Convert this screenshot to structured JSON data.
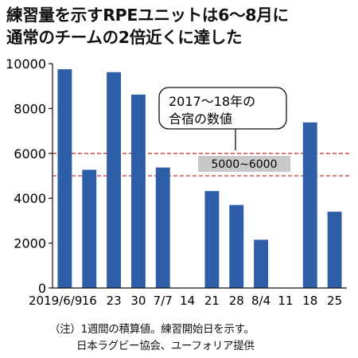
{
  "header": {
    "title_line1": "練習量を示すRPEユニットは6～8月に",
    "title_line2": "通常のチームの2倍近くに達した"
  },
  "chart_data": {
    "type": "bar",
    "categories": [
      "2019/6/9",
      "16",
      "23",
      "30",
      "7/7",
      "14",
      "21",
      "28",
      "8/4",
      "11",
      "18",
      "25"
    ],
    "values": [
      9750,
      5270,
      9620,
      8620,
      5370,
      null,
      4320,
      3700,
      2150,
      null,
      7380,
      3400
    ],
    "yticks": [
      0,
      2000,
      4000,
      6000,
      8000,
      10000
    ],
    "ylim": [
      0,
      10000
    ],
    "reference_band": {
      "low": 5000,
      "high": 6000,
      "label": "5000~6000"
    },
    "annotation": {
      "line1": "2017～18年の",
      "line2": "合宿の数値"
    },
    "colors": {
      "bar": "#2e5ea8",
      "reference": "#cc3333",
      "band_label_bg": "#c8c8c8"
    }
  },
  "footnote": {
    "line1": "（注）1週間の積算値。練習開始日を示す。",
    "line2": "日本ラグビー協会、ユーフォリア提供"
  }
}
